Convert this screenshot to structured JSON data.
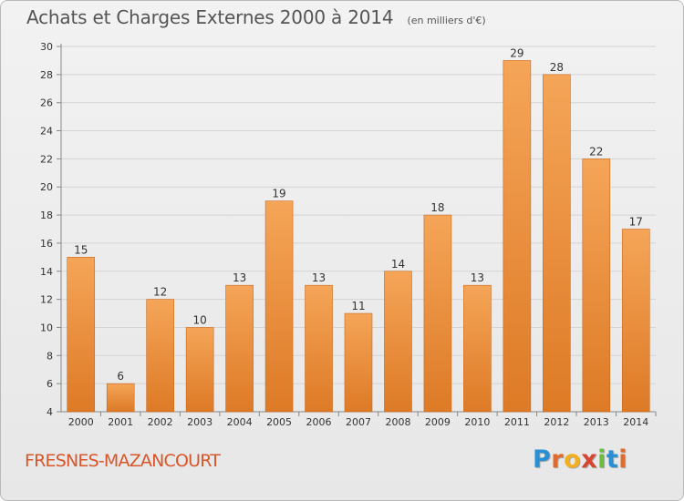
{
  "header": {
    "title": "Achats et Charges Externes 2000 à 2014",
    "subtitle": "(en milliers d'€)"
  },
  "footer": {
    "city": "FRESNES-MAZANCOURT",
    "logo": [
      "P",
      "r",
      "o",
      "x",
      "i",
      "t",
      "i"
    ]
  },
  "colors": {
    "bar_light": "#f5a558",
    "bar_dark": "#dd7a26",
    "bar_edge": "#c9681c",
    "grid": "#d4d4d4",
    "axis": "#888888",
    "text": "#333333",
    "city": "#d9562a",
    "logo": [
      "#2a8fd3",
      "#e06b2c",
      "#f2b021",
      "#d6452f",
      "#6abf3a",
      "#2a8fd3",
      "#e06b2c"
    ]
  },
  "chart_data": {
    "type": "bar",
    "title": "Achats et Charges Externes 2000 à 2014",
    "subtitle": "(en milliers d'€)",
    "categories": [
      "2000",
      "2001",
      "2002",
      "2003",
      "2004",
      "2005",
      "2006",
      "2007",
      "2008",
      "2009",
      "2010",
      "2011",
      "2012",
      "2013",
      "2014"
    ],
    "values": [
      15,
      6,
      12,
      10,
      13,
      19,
      13,
      11,
      14,
      18,
      13,
      29,
      28,
      22,
      17
    ],
    "ylim": [
      4,
      30
    ],
    "yticks": [
      4,
      6,
      8,
      10,
      12,
      14,
      16,
      18,
      20,
      22,
      24,
      26,
      28,
      30
    ],
    "grid": true,
    "data_labels": true
  }
}
